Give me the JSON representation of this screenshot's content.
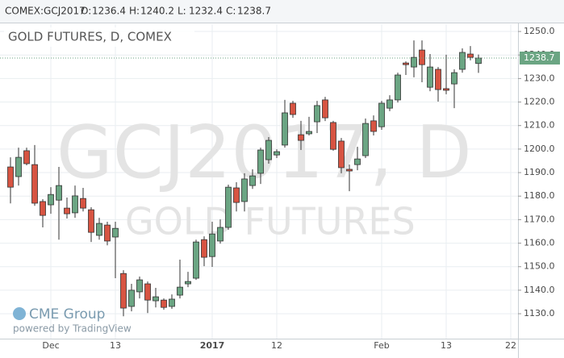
{
  "chart_data": {
    "type": "candlestick",
    "symbol": "COMEX:GCJ2017",
    "header": [
      {
        "label": "O:",
        "value": 1236.4
      },
      {
        "label": "H:",
        "value": 1240.2
      },
      {
        "label": "L:",
        "value": 1232.4
      },
      {
        "label": "C:",
        "value": 1238.7
      }
    ],
    "title": "GOLD FUTURES, D, COMEX",
    "watermark": [
      "GCJ2017, D",
      "GOLD FUTURES"
    ],
    "logo": "CME Group",
    "credit": "powered by TradingView",
    "last_price": 1238.7,
    "up_color": "#6ba583",
    "down_color": "#d75442",
    "grid": true,
    "categories": [
      null,
      null,
      null,
      null,
      null,
      "Dec",
      null,
      null,
      null,
      null,
      null,
      null,
      null,
      "13",
      null,
      null,
      null,
      null,
      null,
      null,
      null,
      null,
      null,
      null,
      null,
      "2017",
      null,
      null,
      null,
      null,
      null,
      null,
      null,
      "12",
      null,
      null,
      null,
      null,
      null,
      null,
      null,
      null,
      null,
      null,
      null,
      null,
      "Feb",
      null,
      null,
      null,
      null,
      null,
      null,
      null,
      "13",
      null,
      null,
      null,
      null,
      null,
      null,
      null,
      "22"
    ],
    "open": [
      1192.4,
      1188.3,
      1199.3,
      1193.4,
      1177.7,
      1176.3,
      1178.3,
      1174.9,
      1172.9,
      1179.0,
      1174.2,
      1163.3,
      1167.7,
      1162.6,
      1147.1,
      1133.1,
      1139.3,
      1142.7,
      1135.5,
      1135.8,
      1133.1,
      1137.9,
      1142.7,
      1145.1,
      1161.5,
      1154.3,
      1160.9,
      1166.7,
      1183.5,
      1177.7,
      1184.5,
      1189.7,
      1195.5,
      1197.5,
      1201.7,
      1219.5,
      1206.1,
      1206.5,
      1211.6,
      1220.9,
      1211.3,
      1203.4,
      1191.4,
      1193.4,
      1197.2,
      1212.0,
      1209.5,
      1217.4,
      1220.9,
      1236.6,
      1234.9,
      1242.1,
      1226.3,
      1233.9,
      1225.7,
      1227.7,
      1233.9,
      1240.4,
      1236.4,
      null,
      null,
      null,
      null
    ],
    "high": [
      1196.5,
      1200.6,
      1200.6,
      1201.7,
      1178.7,
      1183.8,
      1192.4,
      1179.4,
      1184.5,
      1183.5,
      1175.3,
      1170.8,
      1169.1,
      1169.1,
      1148.5,
      1142.7,
      1145.8,
      1143.7,
      1141.0,
      1136.5,
      1138.2,
      1153.0,
      1147.8,
      1161.5,
      1162.9,
      1169.1,
      1170.1,
      1184.9,
      1185.9,
      1189.7,
      1191.4,
      1200.6,
      1205.1,
      1199.9,
      1220.9,
      1220.5,
      1212.0,
      1213.7,
      1220.5,
      1222.2,
      1212.0,
      1204.7,
      1193.4,
      1201.0,
      1213.0,
      1214.3,
      1220.5,
      1222.9,
      1232.5,
      1237.3,
      1246.2,
      1246.2,
      1240.4,
      1234.9,
      1240.1,
      1233.9,
      1242.8,
      1243.8,
      1240.2,
      null,
      null,
      null,
      null
    ],
    "low": [
      1176.9,
      1184.5,
      1193.1,
      1175.9,
      1166.7,
      1172.5,
      1161.5,
      1170.5,
      1170.8,
      1173.5,
      1160.5,
      1161.5,
      1159.1,
      1145.1,
      1128.9,
      1131.0,
      1136.5,
      1130.3,
      1132.7,
      1131.7,
      1132.1,
      1136.5,
      1141.3,
      1144.4,
      1150.2,
      1149.9,
      1159.8,
      1165.7,
      1173.5,
      1173.5,
      1183.1,
      1185.2,
      1193.8,
      1196.2,
      1200.6,
      1213.3,
      1199.6,
      1205.8,
      1206.8,
      1211.9,
      1199.3,
      1189.7,
      1182.1,
      1191.0,
      1196.2,
      1205.8,
      1208.2,
      1216.1,
      1219.8,
      1231.5,
      1230.5,
      1228.4,
      1224.6,
      1220.2,
      1223.3,
      1217.4,
      1232.5,
      1237.7,
      1232.4,
      null,
      null,
      null,
      null
    ],
    "close": [
      1183.8,
      1196.5,
      1193.8,
      1177.0,
      1171.8,
      1180.7,
      1184.5,
      1172.5,
      1180.1,
      1174.9,
      1164.6,
      1168.4,
      1160.9,
      1166.3,
      1132.4,
      1140.0,
      1144.4,
      1135.8,
      1137.2,
      1132.7,
      1136.2,
      1141.3,
      1143.7,
      1160.5,
      1154.0,
      1163.9,
      1166.7,
      1183.8,
      1177.3,
      1187.3,
      1188.6,
      1199.6,
      1203.7,
      1198.9,
      1215.4,
      1214.7,
      1203.7,
      1207.5,
      1218.5,
      1213.3,
      1199.9,
      1192.1,
      1190.7,
      1195.8,
      1210.9,
      1207.5,
      1219.5,
      1220.9,
      1231.5,
      1235.9,
      1239.0,
      1235.9,
      1234.9,
      1225.3,
      1225.0,
      1232.5,
      1241.1,
      1239.0,
      1238.7,
      null,
      null,
      null,
      null
    ],
    "ylim": [
      1119.4,
      1253.1
    ],
    "yticks": [
      {
        "value": 1130,
        "label": "1130.0"
      },
      {
        "value": 1140,
        "label": "1140.0"
      },
      {
        "value": 1150,
        "label": "1150.0"
      },
      {
        "value": 1160,
        "label": "1160.0"
      },
      {
        "value": 1170,
        "label": "1170.0"
      },
      {
        "value": 1180,
        "label": "1180.0"
      },
      {
        "value": 1190,
        "label": "1190.0"
      },
      {
        "value": 1200,
        "label": "1200.0"
      },
      {
        "value": 1210,
        "label": "1210.0"
      },
      {
        "value": 1220,
        "label": "1220.0"
      },
      {
        "value": 1230,
        "label": "1230.0"
      },
      {
        "value": 1240,
        "label": "1240.0"
      },
      {
        "value": 1250,
        "label": "1250.0"
      }
    ]
  }
}
